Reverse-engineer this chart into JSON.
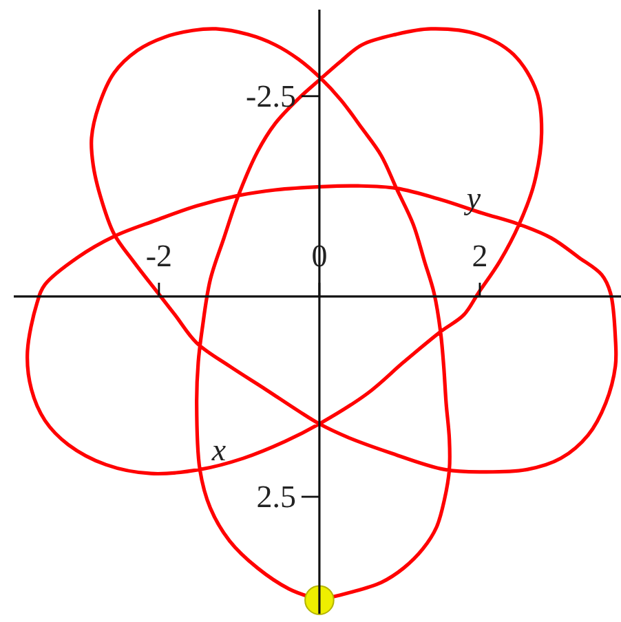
{
  "chart_data": {
    "type": "line",
    "xlabel": "x",
    "ylabel": "y",
    "xlim": [
      -3.81,
      3.76
    ],
    "ylim": [
      3.96,
      -3.58
    ],
    "xticks": [
      -2,
      0,
      2
    ],
    "yticks": [
      -2.5,
      2.5
    ],
    "line_style": "solid",
    "series": [
      {
        "color": "#ff0000",
        "x": [
          0.12,
          0.36,
          0.77,
          1.05,
          1.29,
          1.46,
          1.56,
          1.62,
          1.62,
          1.58,
          1.55,
          1.51,
          1.43,
          1.31,
          1.17,
          0.96,
          0.77,
          0.53,
          0.27,
          0.02,
          -0.26,
          -0.55,
          -0.89,
          -1.29,
          -1.58,
          -1.92,
          -2.27,
          -2.56,
          -2.75,
          -2.84,
          -2.82,
          -2.73,
          -2.56,
          -2.32,
          -2.01,
          -1.8,
          -1.53,
          -1.12,
          -0.67,
          -0.26,
          0,
          0.36,
          0.88,
          1.56,
          2.03,
          2.59,
          3.01,
          3.35,
          3.57,
          3.69,
          3.69,
          3.63,
          3.52,
          3.23,
          2.89,
          2.49,
          2.03,
          1.51,
          0.96,
          0.48,
          0.02,
          -0.55,
          -1.01,
          -1.53,
          -2.04,
          -2.56,
          -3.01,
          -3.42,
          -3.52,
          -3.64,
          -3.59,
          -3.42,
          -3.13,
          -2.66,
          -2.1,
          -1.49,
          -0.95,
          -0.43,
          0,
          0.6,
          1.05,
          1.51,
          1.8,
          1.98,
          2.25,
          2.49,
          2.68,
          2.77,
          2.71,
          2.42,
          1.98,
          1.39,
          0.95,
          0.53,
          0.26,
          0.02,
          -0.26,
          -0.55,
          -0.77,
          -1.01,
          -1.19,
          -1.36,
          -1.46,
          -1.51,
          -1.53,
          -1.49,
          -1.36,
          -1.12,
          -0.77,
          -0.38,
          -0.12
        ],
        "values": [
          3.76,
          3.7,
          3.57,
          3.39,
          3.15,
          2.88,
          2.53,
          2.16,
          1.78,
          1.33,
          0.87,
          0.44,
          -0.04,
          -0.44,
          -0.9,
          -1.35,
          -1.76,
          -2.1,
          -2.45,
          -2.72,
          -2.96,
          -3.14,
          -3.27,
          -3.34,
          -3.32,
          -3.24,
          -3.07,
          -2.79,
          -2.38,
          -1.98,
          -1.64,
          -1.25,
          -0.78,
          -0.44,
          -0.04,
          0.23,
          0.58,
          0.87,
          1.16,
          1.43,
          1.59,
          1.76,
          1.95,
          2.16,
          2.19,
          2.16,
          2.02,
          1.73,
          1.33,
          0.87,
          0.52,
          -0.04,
          -0.27,
          -0.49,
          -0.73,
          -0.9,
          -1.04,
          -1.21,
          -1.35,
          -1.38,
          -1.37,
          -1.33,
          -1.26,
          -1.13,
          -0.95,
          -0.75,
          -0.49,
          -0.15,
          0.08,
          0.7,
          1.16,
          1.55,
          1.85,
          2.1,
          2.21,
          2.16,
          2.02,
          1.81,
          1.59,
          1.21,
          0.82,
          0.44,
          0.23,
          -0.04,
          -0.44,
          -0.9,
          -1.42,
          -2.04,
          -2.55,
          -3.02,
          -3.27,
          -3.34,
          -3.27,
          -3.14,
          -2.93,
          -2.72,
          -2.47,
          -2.16,
          -1.81,
          -1.26,
          -0.73,
          -0.21,
          0.4,
          0.82,
          1.33,
          2.16,
          2.64,
          3.05,
          3.39,
          3.65,
          3.75
        ]
      },
      {
        "type": "scatter",
        "color": "#eeee00",
        "marker": "circle",
        "x": [
          0
        ],
        "values": [
          3.79
        ]
      }
    ]
  }
}
